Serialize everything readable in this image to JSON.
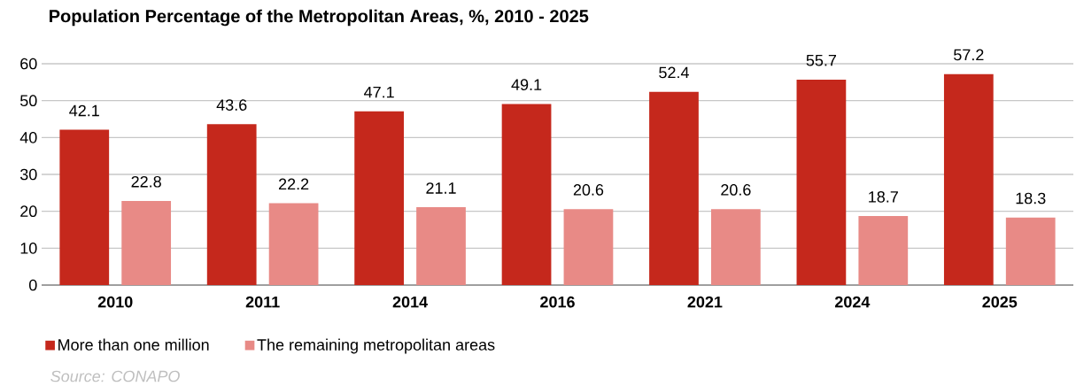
{
  "chart_data": {
    "type": "bar",
    "title": "Population Percentage of the Metropolitan Areas, %, 2010 - 2025",
    "categories": [
      "2010",
      "2011",
      "2014",
      "2016",
      "2021",
      "2024",
      "2025"
    ],
    "series": [
      {
        "name": "More than one million",
        "color": "#c5281c",
        "values": [
          42.1,
          43.6,
          47.1,
          49.1,
          52.4,
          55.7,
          57.2
        ]
      },
      {
        "name": "The remaining metropolitan areas",
        "color": "#e88a86",
        "values": [
          22.8,
          22.2,
          21.1,
          20.6,
          20.6,
          18.7,
          18.3
        ]
      }
    ],
    "ylim": [
      0,
      60
    ],
    "yticks": [
      0,
      10,
      20,
      30,
      40,
      50,
      60
    ],
    "grid": "y",
    "legend": "bottom left",
    "data_labels": true,
    "annotations": [
      "Source: CONAPO"
    ]
  }
}
